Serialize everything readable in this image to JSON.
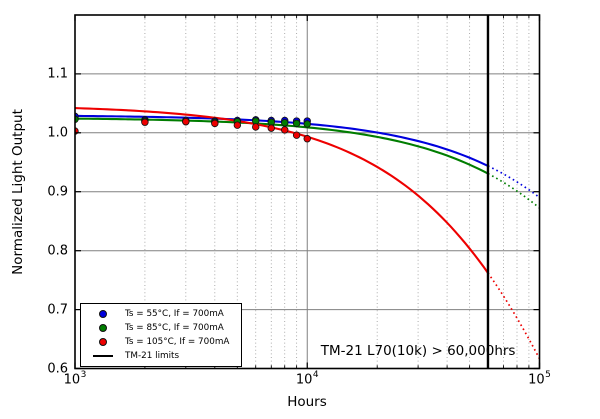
{
  "background": "#ffffff",
  "chart_data": {
    "type": "line",
    "title": "",
    "xlabel": "Hours",
    "ylabel": "Normalized Light Output",
    "x_scale": "log",
    "xlim": [
      1000,
      100000
    ],
    "ylim": [
      0.6,
      1.2
    ],
    "grid": {
      "major_color": "#808080",
      "minor_color": "#a3a3a3",
      "minor_style": "dotted"
    },
    "x_ticks": [
      {
        "base": "10",
        "exp": "3",
        "value": 1000
      },
      {
        "base": "10",
        "exp": "4",
        "value": 10000
      },
      {
        "base": "10",
        "exp": "5",
        "value": 100000
      }
    ],
    "y_ticks": [
      {
        "label": "0.6",
        "value": 0.6
      },
      {
        "label": "0.7",
        "value": 0.7
      },
      {
        "label": "0.8",
        "value": 0.8
      },
      {
        "label": "0.9",
        "value": 0.9
      },
      {
        "label": "1.0",
        "value": 1.0
      },
      {
        "label": "1.1",
        "value": 1.1
      }
    ],
    "series": [
      {
        "label": "Ts = 55°C, If = 700mA",
        "color": "#0000dd",
        "marker": "circle",
        "points": {
          "hours": [
            1000,
            2000,
            3000,
            4000,
            5000,
            6000,
            7000,
            8000,
            9000,
            10000
          ],
          "values": [
            1.028,
            1.022,
            1.021,
            1.02,
            1.021,
            1.022,
            1.021,
            1.021,
            1.02,
            1.02
          ]
        },
        "fit": {
          "B": 1.0302,
          "a": 1.46e-06
        },
        "solid_range": [
          1000,
          60000
        ],
        "dotted_range": [
          60000,
          100000
        ]
      },
      {
        "label": "Ts = 85°C, If = 700mA",
        "color": "#007d00",
        "marker": "circle",
        "points": {
          "hours": [
            1000,
            2000,
            3000,
            4000,
            5000,
            6000,
            7000,
            8000,
            9000,
            10000
          ],
          "values": [
            1.023,
            1.02,
            1.019,
            1.018,
            1.019,
            1.02,
            1.018,
            1.017,
            1.016,
            1.015
          ]
        },
        "fit": {
          "B": 1.0258,
          "a": 1.62e-06
        },
        "solid_range": [
          1000,
          60000
        ],
        "dotted_range": [
          60000,
          100000
        ]
      },
      {
        "label": "Ts = 105°C, If = 700mA",
        "color": "#ee0000",
        "marker": "circle",
        "points": {
          "hours": [
            1000,
            2000,
            3000,
            4000,
            5000,
            6000,
            7000,
            8000,
            9000,
            10000
          ],
          "values": [
            1.003,
            1.018,
            1.019,
            1.016,
            1.013,
            1.01,
            1.008,
            1.005,
            0.996,
            0.99
          ]
        },
        "fit": {
          "B": 1.0475,
          "a": 5.3e-06
        },
        "solid_range": [
          1000,
          60000
        ],
        "dotted_range": [
          60000,
          100000
        ]
      }
    ],
    "limit_line": {
      "label": "TM-21 limits",
      "color": "#000000",
      "x_hours": 60000
    },
    "annotation": {
      "text": "TM-21 L70(10k) > 60,000hrs",
      "x_hours": 30000,
      "y_value": 0.623
    },
    "legend_position": "lower left"
  }
}
